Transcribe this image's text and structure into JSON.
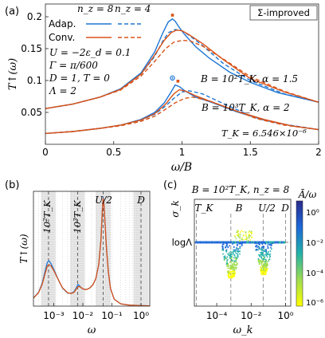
{
  "panel_a": {
    "panel_label": "(a)",
    "box_label": "Σ-improved",
    "legend_header": [
      "n_z = 8",
      "n_z = 4"
    ],
    "legend_rows": [
      "Adap.",
      "Conv."
    ],
    "params": [
      "U = −2ε_d = 0.1",
      "Γ = π/600",
      "D = 1, T = 0",
      "Λ = 2"
    ],
    "annotations": [
      "B = 10²T_K, α = 1.5",
      "B = 10³T_K, α = 2",
      "T_K = 6.546×10⁻⁶"
    ],
    "colors": {
      "adap": "#1f77d4",
      "conv": "#d95319"
    }
  },
  "panel_b": {
    "panel_label": "(b)",
    "vlines": [
      "10²T_K",
      "10³T_K",
      "U/2",
      "D"
    ]
  },
  "panel_c": {
    "panel_label": "(c)",
    "title": "B = 10²T_K, n_z = 8",
    "vlines": [
      "T_K",
      "B",
      "U/2",
      "D"
    ],
    "ytick": "logΛ",
    "colorbar_label": "Ā/ω",
    "colorbar_ticks": [
      "10⁰",
      "10⁻²",
      "10⁻⁴",
      "10⁻⁶"
    ],
    "colormap": [
      "#ffff00",
      "#a0dc50",
      "#22b2a8",
      "#1c68d8",
      "#2a2a8c"
    ]
  },
  "chart_data": [
    {
      "type": "line",
      "xlabel": "ω/B",
      "ylabel": "T↑(ω)",
      "xlim": [
        0,
        2
      ],
      "ylim": [
        0,
        0.22
      ],
      "xticks": [
        "0",
        "0.5",
        "1",
        "1.5",
        "2"
      ],
      "yticks": [
        "0.05",
        "0.1",
        "0.15",
        "0.2"
      ],
      "xtick_values": [
        0,
        0.5,
        1,
        1.5,
        2
      ],
      "ytick_values": [
        0.05,
        0.1,
        0.15,
        0.2
      ],
      "series": [
        {
          "name": "Adap. n_z=8 (B=10²T_K)",
          "color": "#1f77d4",
          "dash": false,
          "x": [
            0,
            0.2,
            0.4,
            0.55,
            0.7,
            0.8,
            0.86,
            0.9,
            0.93,
            0.95,
            0.98,
            1.02,
            1.1,
            1.2,
            1.35,
            1.5,
            1.7,
            2.0
          ],
          "y": [
            0.056,
            0.063,
            0.074,
            0.087,
            0.112,
            0.145,
            0.175,
            0.192,
            0.1965,
            0.193,
            0.183,
            0.172,
            0.153,
            0.135,
            0.113,
            0.097,
            0.081,
            0.066
          ]
        },
        {
          "name": "Adap. n_z=4 (B=10²T_K)",
          "color": "#1f77d4",
          "dash": true,
          "x": [
            0,
            0.2,
            0.4,
            0.55,
            0.7,
            0.8,
            0.86,
            0.9,
            0.95,
            1.0,
            1.05,
            1.15,
            1.3,
            1.5,
            1.75,
            2.0
          ],
          "y": [
            0.056,
            0.063,
            0.074,
            0.086,
            0.11,
            0.138,
            0.162,
            0.175,
            0.18,
            0.178,
            0.171,
            0.155,
            0.127,
            0.1,
            0.079,
            0.066
          ]
        },
        {
          "name": "Conv. n_z=8 (B=10²T_K)",
          "color": "#d95319",
          "dash": false,
          "x": [
            0,
            0.2,
            0.4,
            0.55,
            0.7,
            0.8,
            0.87,
            0.92,
            0.96,
            1.0,
            1.05,
            1.15,
            1.3,
            1.5,
            1.75,
            2.0
          ],
          "y": [
            0.056,
            0.063,
            0.074,
            0.086,
            0.11,
            0.14,
            0.163,
            0.175,
            0.179,
            0.178,
            0.172,
            0.158,
            0.133,
            0.103,
            0.082,
            0.066
          ]
        },
        {
          "name": "Conv. n_z=4 (B=10²T_K)",
          "color": "#d95319",
          "dash": true,
          "x": [
            0,
            0.2,
            0.4,
            0.55,
            0.7,
            0.8,
            0.88,
            0.94,
            1.0,
            1.06,
            1.15,
            1.3,
            1.5,
            1.75,
            2.0
          ],
          "y": [
            0.056,
            0.063,
            0.074,
            0.085,
            0.107,
            0.13,
            0.15,
            0.16,
            0.163,
            0.162,
            0.154,
            0.134,
            0.106,
            0.083,
            0.066
          ]
        },
        {
          "name": "Adap. n_z=8 (B=10³T_K)",
          "color": "#1f77d4",
          "dash": false,
          "x": [
            0,
            0.2,
            0.4,
            0.55,
            0.7,
            0.8,
            0.87,
            0.92,
            0.95,
            0.98,
            1.02,
            1.1,
            1.2,
            1.4,
            1.6,
            1.8,
            2.0
          ],
          "y": [
            0.017,
            0.02,
            0.025,
            0.03,
            0.039,
            0.05,
            0.065,
            0.082,
            0.093,
            0.0905,
            0.084,
            0.074,
            0.067,
            0.051,
            0.038,
            0.029,
            0.023
          ]
        },
        {
          "name": "Adap. n_z=4 (B=10³T_K)",
          "color": "#1f77d4",
          "dash": true,
          "x": [
            0,
            0.2,
            0.4,
            0.55,
            0.7,
            0.8,
            0.88,
            0.94,
            1.0,
            1.05,
            1.15,
            1.3,
            1.5,
            1.7,
            2.0
          ],
          "y": [
            0.017,
            0.02,
            0.025,
            0.03,
            0.038,
            0.047,
            0.06,
            0.072,
            0.082,
            0.084,
            0.079,
            0.064,
            0.045,
            0.033,
            0.023
          ]
        },
        {
          "name": "Conv. n_z=8 (B=10³T_K)",
          "color": "#d95319",
          "dash": false,
          "x": [
            0,
            0.2,
            0.4,
            0.55,
            0.7,
            0.8,
            0.88,
            0.94,
            0.98,
            1.03,
            1.1,
            1.2,
            1.4,
            1.6,
            1.8,
            2.0
          ],
          "y": [
            0.017,
            0.02,
            0.025,
            0.03,
            0.038,
            0.048,
            0.063,
            0.079,
            0.0855,
            0.083,
            0.076,
            0.068,
            0.052,
            0.039,
            0.029,
            0.023
          ]
        },
        {
          "name": "Conv. n_z=4 (B=10³T_K)",
          "color": "#d95319",
          "dash": true,
          "x": [
            0,
            0.2,
            0.4,
            0.55,
            0.7,
            0.8,
            0.88,
            0.95,
            1.02,
            1.08,
            1.2,
            1.35,
            1.55,
            1.75,
            2.0
          ],
          "y": [
            0.017,
            0.02,
            0.025,
            0.029,
            0.036,
            0.044,
            0.055,
            0.065,
            0.072,
            0.074,
            0.068,
            0.056,
            0.04,
            0.03,
            0.023
          ]
        }
      ],
      "markers": [
        {
          "x": 0.93,
          "y": 0.2025,
          "color": "#d95319",
          "shape": "square"
        },
        {
          "x": 0.93,
          "y": 0.104,
          "color": "#1f77d4",
          "shape": "ring"
        },
        {
          "x": 0.97,
          "y": 0.099,
          "color": "#d95319",
          "shape": "square"
        }
      ]
    },
    {
      "type": "line",
      "xlabel": "ω",
      "ylabel": "T↑(ω)",
      "xscale": "log",
      "xlim": [
        0.0002,
        2
      ],
      "ylim": [
        0,
        0.5
      ],
      "xticks": [
        "10⁻³",
        "10⁻²",
        "10⁻¹",
        "10⁰"
      ],
      "xtick_values": [
        0.001,
        0.01,
        0.1,
        1
      ],
      "vline_values": [
        0.00066,
        0.0066,
        0.05,
        1
      ],
      "series": [
        {
          "name": "Adap.",
          "color": "#1f77d4",
          "x": [
            0.0002,
            0.0003,
            0.0004,
            0.0005,
            0.0006,
            0.00068,
            0.0008,
            0.001,
            0.0015,
            0.002,
            0.003,
            0.004,
            0.005,
            0.006,
            0.0068,
            0.0075,
            0.0085,
            0.01,
            0.013,
            0.017,
            0.022,
            0.028,
            0.035,
            0.042,
            0.047,
            0.05,
            0.053,
            0.058,
            0.065,
            0.075,
            0.09,
            0.12,
            0.2,
            0.4,
            1.0,
            2.0
          ],
          "y": [
            0.035,
            0.06,
            0.1,
            0.15,
            0.19,
            0.198,
            0.185,
            0.16,
            0.11,
            0.078,
            0.057,
            0.056,
            0.063,
            0.08,
            0.094,
            0.09,
            0.082,
            0.075,
            0.072,
            0.078,
            0.092,
            0.12,
            0.18,
            0.29,
            0.42,
            0.475,
            0.45,
            0.36,
            0.25,
            0.15,
            0.075,
            0.03,
            0.01,
            0.004,
            0.002,
            0.001
          ]
        },
        {
          "name": "Conv.",
          "color": "#d95319",
          "x": [
            0.0002,
            0.0003,
            0.0004,
            0.0005,
            0.0006,
            0.0007,
            0.0008,
            0.001,
            0.0015,
            0.002,
            0.003,
            0.004,
            0.005,
            0.006,
            0.007,
            0.008,
            0.009,
            0.01,
            0.013,
            0.017,
            0.022,
            0.028,
            0.035,
            0.042,
            0.047,
            0.05,
            0.053,
            0.058,
            0.065,
            0.075,
            0.09,
            0.12,
            0.2,
            0.4,
            1.0,
            2.0
          ],
          "y": [
            0.035,
            0.058,
            0.095,
            0.14,
            0.175,
            0.18,
            0.175,
            0.155,
            0.11,
            0.08,
            0.058,
            0.055,
            0.06,
            0.075,
            0.085,
            0.084,
            0.079,
            0.075,
            0.072,
            0.078,
            0.092,
            0.12,
            0.18,
            0.29,
            0.42,
            0.47,
            0.445,
            0.36,
            0.25,
            0.15,
            0.075,
            0.03,
            0.01,
            0.004,
            0.002,
            0.001
          ]
        }
      ]
    },
    {
      "type": "heatmap",
      "xlabel": "ω_k",
      "ylabel": "σ_k",
      "xscale": "log",
      "xlim": [
        5e-06,
        2
      ],
      "xticks": [
        "10⁻⁴",
        "10⁻²",
        "10⁰"
      ],
      "xtick_values": [
        0.0001,
        0.01,
        1
      ],
      "vline_values": [
        6.6e-06,
        0.00066,
        0.05,
        1
      ],
      "colorbar_range": [
        "10⁻⁶",
        "10⁰"
      ]
    }
  ]
}
